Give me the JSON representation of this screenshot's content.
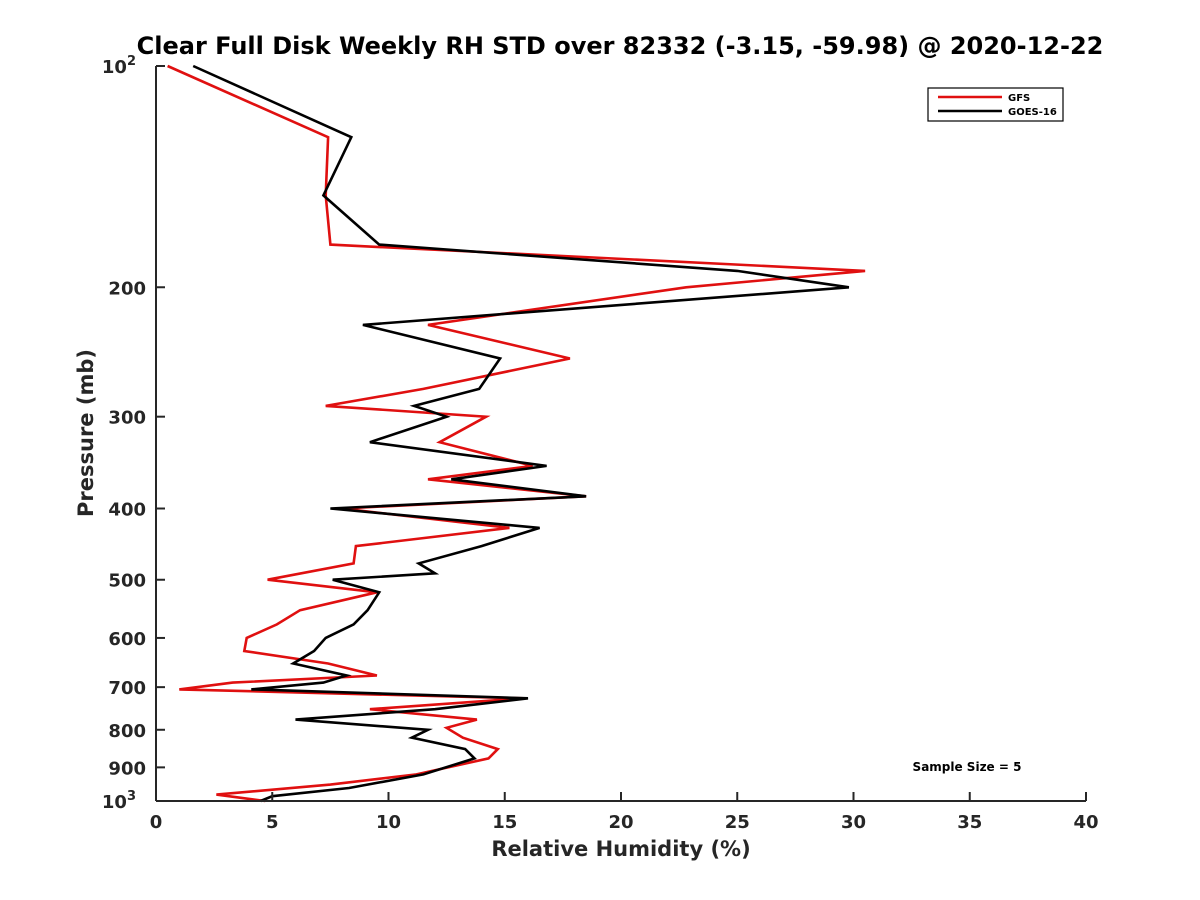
{
  "chart_data": {
    "type": "line",
    "title": "Clear Full Disk Weekly RH STD over 82332 (-3.15, -59.98) @ 2020-12-22",
    "xlabel": "Relative Humidity (%)",
    "ylabel": "Pressure (mb)",
    "xlim": [
      0,
      40
    ],
    "ylim": [
      100,
      1000
    ],
    "y_scale": "log",
    "y_reversed": true,
    "grid": false,
    "legend_position": "top-right",
    "x_ticks": [
      "0",
      "5",
      "10",
      "15",
      "20",
      "25",
      "30",
      "35",
      "40"
    ],
    "y_ticks": [
      {
        "value": 100,
        "base": "10",
        "exp": "2"
      },
      {
        "value": 200,
        "label": "200"
      },
      {
        "value": 300,
        "label": "300"
      },
      {
        "value": 400,
        "label": "400"
      },
      {
        "value": 500,
        "label": "500"
      },
      {
        "value": 600,
        "label": "600"
      },
      {
        "value": 700,
        "label": "700"
      },
      {
        "value": 800,
        "label": "800"
      },
      {
        "value": 900,
        "label": "900"
      },
      {
        "value": 1000,
        "base": "10",
        "exp": "3"
      }
    ],
    "annotation": "Sample Size = 5",
    "series": [
      {
        "name": "GFS",
        "color": "#e01010",
        "points": [
          [
            0.5,
            100
          ],
          [
            7.4,
            125
          ],
          [
            7.3,
            150
          ],
          [
            7.5,
            175
          ],
          [
            30.5,
            190
          ],
          [
            22.8,
            200
          ],
          [
            11.7,
            225
          ],
          [
            17.8,
            250
          ],
          [
            11.5,
            275
          ],
          [
            7.3,
            290
          ],
          [
            14.2,
            300
          ],
          [
            12.2,
            325
          ],
          [
            16.2,
            350
          ],
          [
            11.7,
            365
          ],
          [
            18.5,
            385
          ],
          [
            8.0,
            400
          ],
          [
            15.2,
            425
          ],
          [
            8.6,
            450
          ],
          [
            8.5,
            475
          ],
          [
            4.8,
            500
          ],
          [
            9.5,
            520
          ],
          [
            6.2,
            550
          ],
          [
            5.2,
            575
          ],
          [
            3.9,
            600
          ],
          [
            3.8,
            625
          ],
          [
            7.4,
            650
          ],
          [
            9.5,
            675
          ],
          [
            3.3,
            690
          ],
          [
            1.0,
            705
          ],
          [
            15.8,
            725
          ],
          [
            9.2,
            750
          ],
          [
            13.8,
            775
          ],
          [
            12.5,
            795
          ],
          [
            13.2,
            820
          ],
          [
            14.7,
            850
          ],
          [
            14.3,
            875
          ],
          [
            11.2,
            920
          ],
          [
            7.5,
            950
          ],
          [
            2.6,
            980
          ],
          [
            4.7,
            1000
          ]
        ]
      },
      {
        "name": "GOES-16",
        "color": "#000000",
        "points": [
          [
            1.6,
            100
          ],
          [
            8.4,
            125
          ],
          [
            7.2,
            150
          ],
          [
            9.6,
            175
          ],
          [
            25.0,
            190
          ],
          [
            29.8,
            200
          ],
          [
            8.9,
            225
          ],
          [
            14.8,
            250
          ],
          [
            13.9,
            275
          ],
          [
            11.1,
            290
          ],
          [
            12.5,
            300
          ],
          [
            9.2,
            325
          ],
          [
            16.8,
            350
          ],
          [
            12.7,
            365
          ],
          [
            18.5,
            385
          ],
          [
            7.5,
            400
          ],
          [
            16.5,
            425
          ],
          [
            14.0,
            450
          ],
          [
            11.3,
            475
          ],
          [
            12.0,
            490
          ],
          [
            7.6,
            500
          ],
          [
            9.6,
            520
          ],
          [
            9.1,
            550
          ],
          [
            8.5,
            575
          ],
          [
            7.3,
            600
          ],
          [
            6.8,
            625
          ],
          [
            5.9,
            650
          ],
          [
            8.2,
            675
          ],
          [
            7.2,
            690
          ],
          [
            4.1,
            705
          ],
          [
            16.0,
            725
          ],
          [
            12.0,
            750
          ],
          [
            6.0,
            775
          ],
          [
            11.7,
            800
          ],
          [
            11.0,
            820
          ],
          [
            13.3,
            850
          ],
          [
            13.7,
            875
          ],
          [
            11.5,
            920
          ],
          [
            8.3,
            960
          ],
          [
            5.0,
            985
          ],
          [
            4.5,
            1000
          ]
        ]
      }
    ]
  }
}
